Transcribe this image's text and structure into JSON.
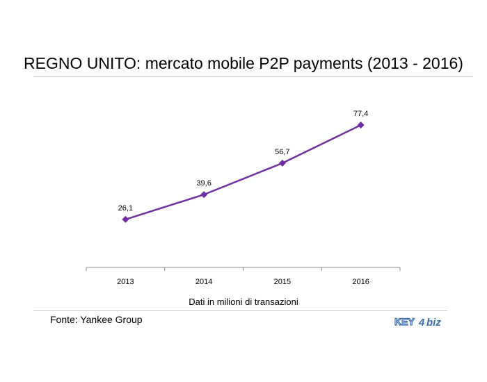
{
  "title": "REGNO UNITO: mercato mobile P2P payments (2013 - 2016)",
  "source": "Fonte: Yankee Group",
  "logo": {
    "name": "key4biz-logo",
    "text_a": "KEY",
    "text_b": "4",
    "text_c": "biz"
  },
  "chart_data": {
    "type": "line",
    "title": "REGNO UNITO: mercato mobile P2P payments (2013 - 2016)",
    "categories": [
      "2013",
      "2014",
      "2015",
      "2016"
    ],
    "series": [
      {
        "values": [
          26.1,
          39.6,
          56.7,
          77.4
        ],
        "labels": [
          "26,1",
          "39,6",
          "56,7",
          "77,4"
        ]
      }
    ],
    "xlabel": "Dati in milioni di transazioni",
    "ylabel": "",
    "ylim": [
      0,
      100
    ],
    "grid": false,
    "color": "#7030a0"
  }
}
